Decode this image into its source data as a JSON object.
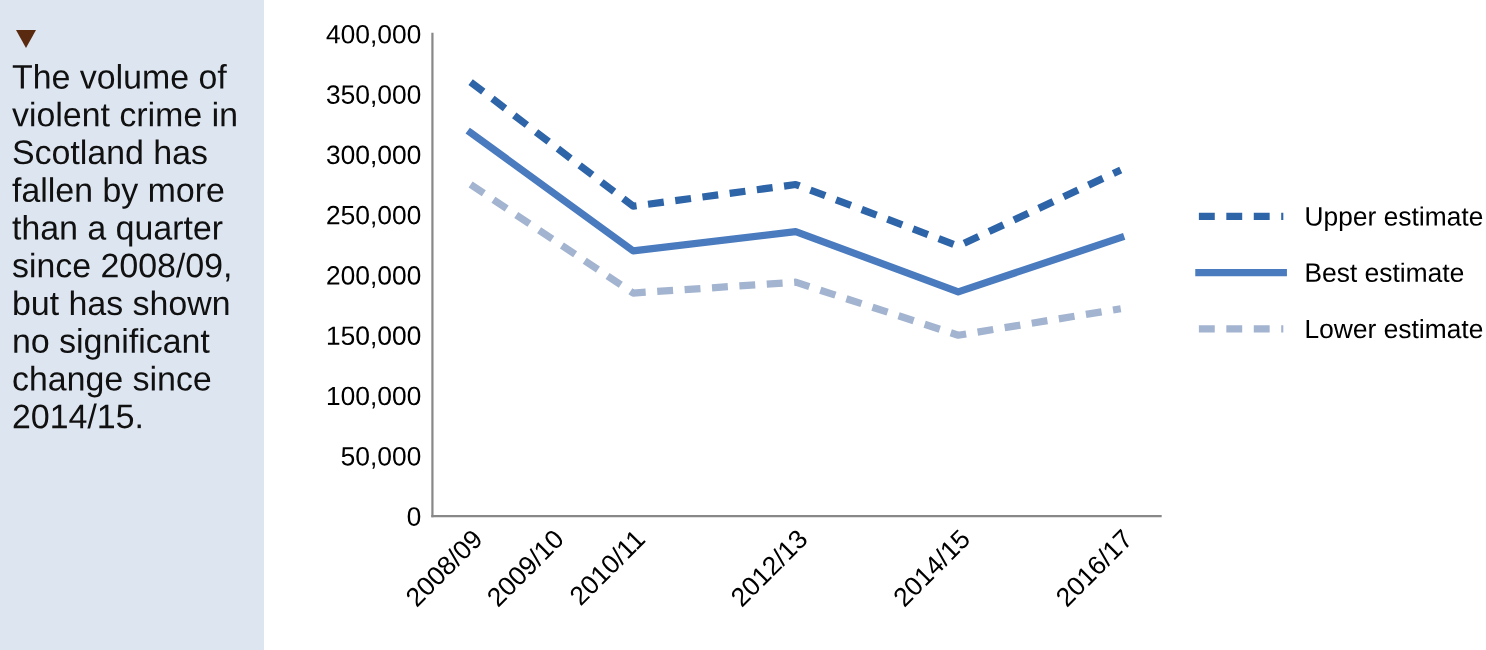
{
  "chart_data": {
    "type": "line",
    "annotations": [
      "The volume of violent crime in Scotland has fallen by more than a quarter since 2008/09, but has shown no significant change since 2014/15."
    ],
    "categories": [
      "2008/09",
      "2009/10",
      "2010/11",
      null,
      "2012/13",
      null,
      "2014/15",
      null,
      "2016/17"
    ],
    "series": [
      {
        "name": "Upper estimate",
        "color": "#2e64a8",
        "line_style": "dashed",
        "values": [
          360000,
          null,
          257000,
          null,
          275000,
          null,
          224000,
          null,
          287000
        ]
      },
      {
        "name": "Best estimate",
        "color": "#4a7bbf",
        "line_style": "solid",
        "values": [
          318000,
          null,
          220000,
          null,
          236000,
          null,
          186000,
          null,
          231000
        ]
      },
      {
        "name": "Lower estimate",
        "color": "#a3b4d0",
        "line_style": "dashed",
        "values": [
          275000,
          null,
          185000,
          null,
          194000,
          null,
          150000,
          null,
          172000
        ]
      }
    ],
    "ylim": [
      0,
      400000
    ],
    "yticks": [
      {
        "value": 0,
        "label": "0"
      },
      {
        "value": 50000,
        "label": "50,000"
      },
      {
        "value": 100000,
        "label": "100,000"
      },
      {
        "value": 150000,
        "label": "150,000"
      },
      {
        "value": 200000,
        "label": "200,000"
      },
      {
        "value": 250000,
        "label": "250,000"
      },
      {
        "value": 300000,
        "label": "300,000"
      },
      {
        "value": 350000,
        "label": "350,000"
      },
      {
        "value": 400000,
        "label": "400,000"
      }
    ],
    "grid": false,
    "legend": "right",
    "marker": "none"
  }
}
